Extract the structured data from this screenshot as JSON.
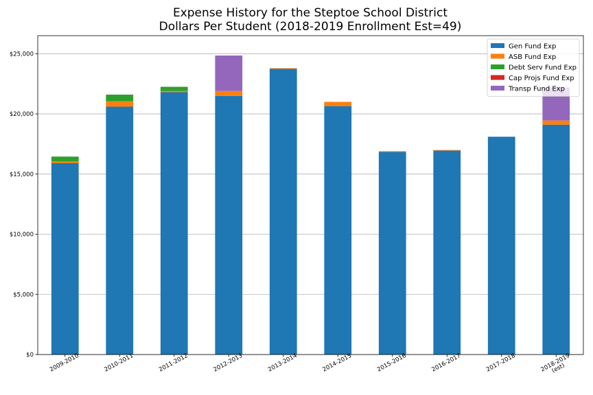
{
  "chart_data": {
    "type": "bar",
    "stacked": true,
    "title": [
      "Expense History for the Steptoe School District",
      "Dollars Per Student (2018-2019 Enrollment Est=49)"
    ],
    "xlabel": "",
    "ylabel": "",
    "categories": [
      [
        "2009-2010"
      ],
      [
        "2010-2011"
      ],
      [
        "2011-2012"
      ],
      [
        "2012-2013"
      ],
      [
        "2013-2014"
      ],
      [
        "2014-2015"
      ],
      [
        "2015-2016"
      ],
      [
        "2016-2017"
      ],
      [
        "2017-2018"
      ],
      [
        "2018-2019",
        "(est)"
      ]
    ],
    "ylim": [
      0,
      26500
    ],
    "yticks": [
      0,
      5000,
      10000,
      15000,
      20000,
      25000
    ],
    "ytick_labels": [
      "$0",
      "$5,000",
      "$10,000",
      "$15,000",
      "$20,000",
      "$25,000"
    ],
    "grid": "horizontal",
    "legend_position": "top-right",
    "series": [
      {
        "name": "Gen Fund Exp",
        "color": "#1f77b4",
        "values": [
          15900,
          20600,
          21800,
          21500,
          23750,
          20650,
          16850,
          16950,
          18100,
          19100
        ]
      },
      {
        "name": "ASB Fund Exp",
        "color": "#ff7f0e",
        "values": [
          150,
          450,
          100,
          400,
          50,
          350,
          50,
          50,
          0,
          350
        ]
      },
      {
        "name": "Debt Serv Fund Exp",
        "color": "#2ca02c",
        "values": [
          400,
          550,
          350,
          0,
          0,
          0,
          0,
          0,
          0,
          0
        ]
      },
      {
        "name": "Cap Projs Fund Exp",
        "color": "#d62728",
        "values": [
          0,
          0,
          0,
          0,
          0,
          0,
          0,
          0,
          0,
          0
        ]
      },
      {
        "name": "Transp Fund Exp",
        "color": "#9467bd",
        "values": [
          0,
          0,
          0,
          2950,
          0,
          0,
          0,
          0,
          0,
          2750
        ]
      }
    ]
  }
}
